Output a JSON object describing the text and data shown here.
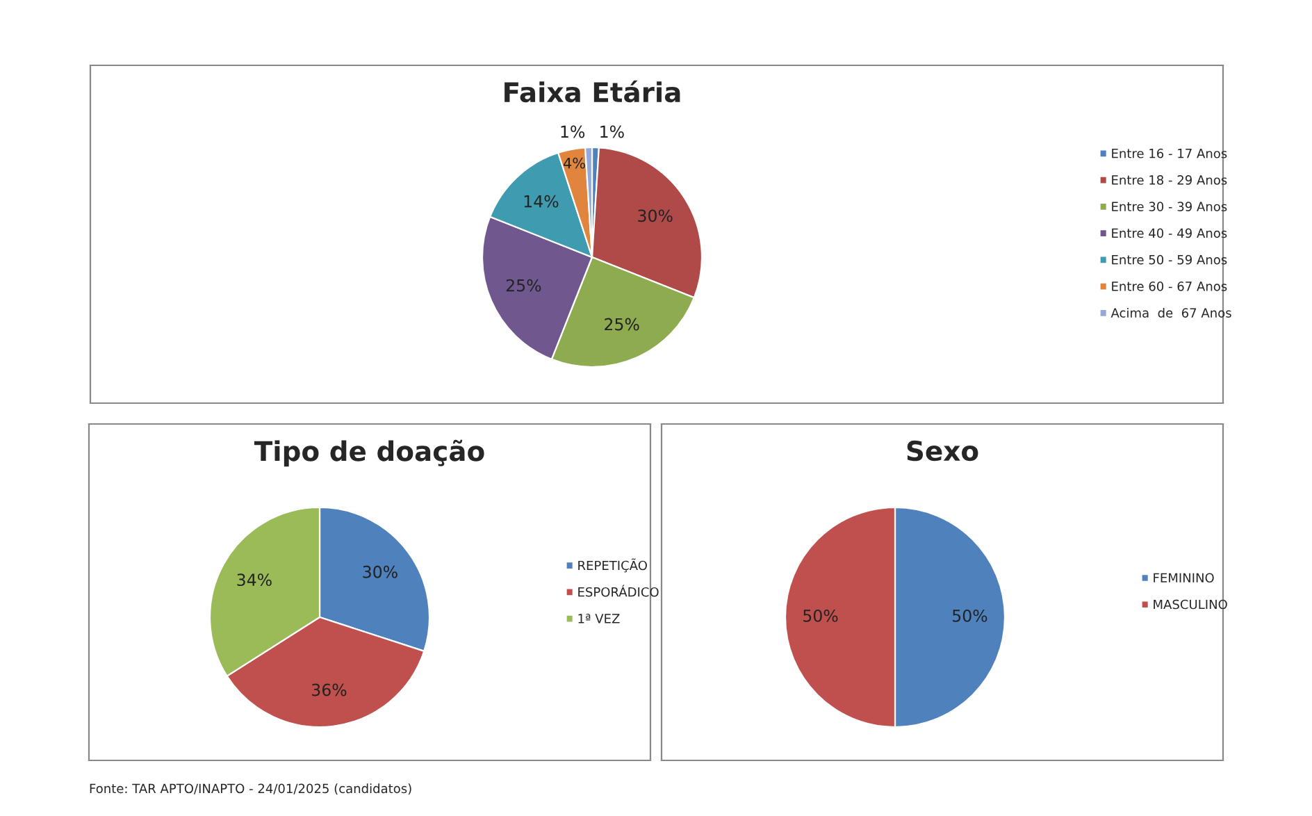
{
  "chart_data": [
    {
      "type": "pie",
      "title": "Faixa Etária",
      "categories": [
        "Entre 16 - 17 Anos",
        "Entre 18 - 29 Anos",
        "Entre 30 - 39 Anos",
        "Entre 40 - 49 Anos",
        "Entre 50 - 59 Anos",
        "Entre 60 - 67 Anos",
        "Acima  de  67 Anos"
      ],
      "values": [
        1,
        30,
        25,
        25,
        14,
        4,
        1
      ],
      "value_labels": [
        "1%",
        "30%",
        "25%",
        "25%",
        "14%",
        "4%",
        "1%"
      ],
      "colors": [
        "#4f81bd",
        "#b04a48",
        "#8eac4f",
        "#70588f",
        "#3f9bb0",
        "#e0843e",
        "#95a9d8"
      ],
      "legend": "right"
    },
    {
      "type": "pie",
      "title": "Tipo de doação",
      "categories": [
        "REPETIÇÃO",
        "ESPORÁDICO",
        "1ª VEZ"
      ],
      "values": [
        30,
        36,
        34
      ],
      "value_labels": [
        "30%",
        "36%",
        "34%"
      ],
      "colors": [
        "#4f81bd",
        "#c0504d",
        "#9bbb59"
      ],
      "legend": "right"
    },
    {
      "type": "pie",
      "title": "Sexo",
      "categories": [
        "FEMININO",
        "MASCULINO"
      ],
      "values": [
        50,
        50
      ],
      "value_labels": [
        "50%",
        "50%"
      ],
      "colors": [
        "#4f81bd",
        "#c0504d"
      ],
      "legend": "right",
      "annotations": [
        "Fonte: TAR APTO/INAPTO - 24/01/2025 (candidatos)"
      ]
    }
  ]
}
